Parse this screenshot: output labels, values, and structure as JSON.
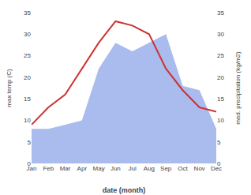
{
  "chart_data": {
    "type": "line",
    "xlabel": "date (month)",
    "ylabel": "max temp (C)",
    "y2label": "med. precipitation (kg/m2)",
    "categories": [
      "Jan",
      "Feb",
      "Mar",
      "Apr",
      "May",
      "Jun",
      "Jul",
      "Aug",
      "Sep",
      "Oct",
      "Nov",
      "Dec"
    ],
    "series": [
      {
        "type": "area",
        "axis": "y2",
        "color": "#aabbee",
        "values": [
          8,
          8,
          9,
          10,
          22,
          28,
          26,
          28,
          30,
          18,
          17,
          8
        ]
      },
      {
        "type": "line",
        "color": "#cc3333",
        "values": [
          9,
          13,
          16,
          22,
          28,
          33,
          32,
          30,
          22,
          17,
          13,
          12
        ]
      }
    ],
    "ylim": [
      0,
      35
    ],
    "yticks": [
      0,
      5,
      10,
      15,
      20,
      25,
      30,
      35
    ],
    "y2lim": [
      0,
      35
    ],
    "y2ticks": [
      0,
      5,
      10,
      15,
      20,
      25,
      30,
      35
    ],
    "grid": false
  }
}
